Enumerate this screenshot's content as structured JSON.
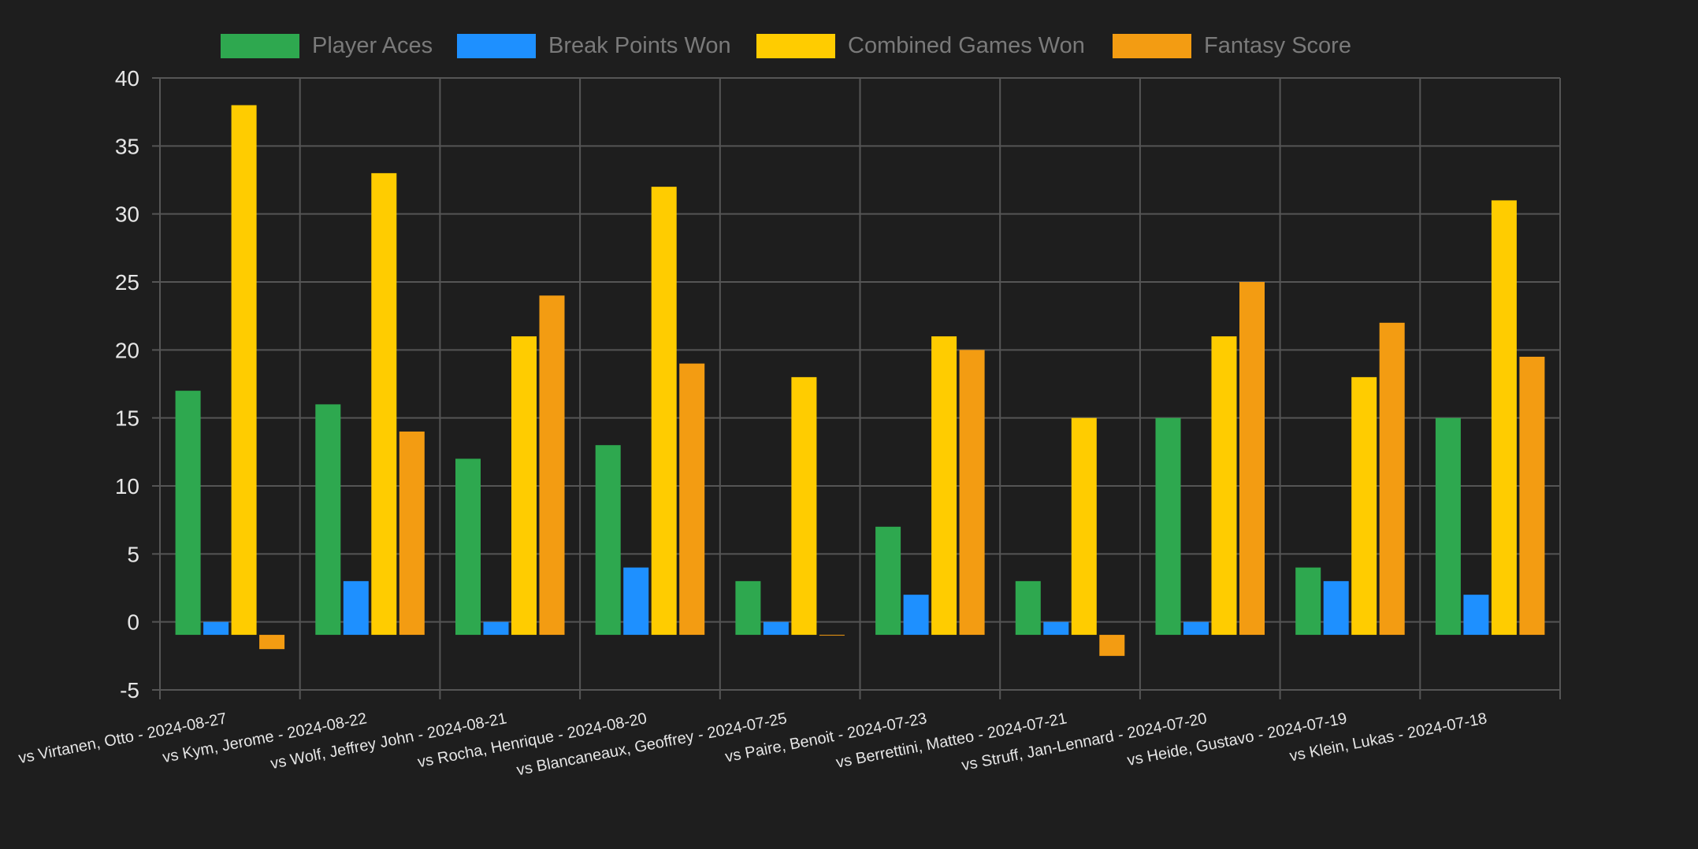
{
  "chart_data": {
    "type": "bar",
    "categories": [
      "vs Virtanen, Otto - 2024-08-27",
      "vs Kym, Jerome - 2024-08-22",
      "vs Wolf, Jeffrey John - 2024-08-21",
      "vs Rocha, Henrique - 2024-08-20",
      "vs Blancaneaux, Geoffrey - 2024-07-25",
      "vs Paire, Benoit - 2024-07-23",
      "vs Berrettini, Matteo - 2024-07-21",
      "vs Struff, Jan-Lennard - 2024-07-20",
      "vs Heide, Gustavo - 2024-07-19",
      "vs Klein, Lukas - 2024-07-18"
    ],
    "series": [
      {
        "name": "Player Aces",
        "color": "#2ea84f",
        "values": [
          17,
          16,
          12,
          13,
          3,
          7,
          3,
          15,
          4,
          15
        ]
      },
      {
        "name": "Break Points Won",
        "color": "#1e90ff",
        "values": [
          0,
          3,
          0,
          4,
          0,
          2,
          0,
          0,
          3,
          2
        ]
      },
      {
        "name": "Combined Games Won",
        "color": "#ffcc00",
        "values": [
          38,
          33,
          21,
          32,
          18,
          21,
          15,
          21,
          18,
          31
        ]
      },
      {
        "name": "Fantasy Score",
        "color": "#f39c12",
        "values": [
          -2,
          14,
          24,
          19,
          -1,
          20,
          -2.5,
          25,
          22,
          19.5
        ]
      }
    ],
    "ylim": [
      -5,
      40
    ],
    "yticks": [
      40,
      35,
      30,
      25,
      20,
      15,
      10,
      5,
      0,
      -5
    ],
    "grid": true,
    "legend_position": "top"
  }
}
